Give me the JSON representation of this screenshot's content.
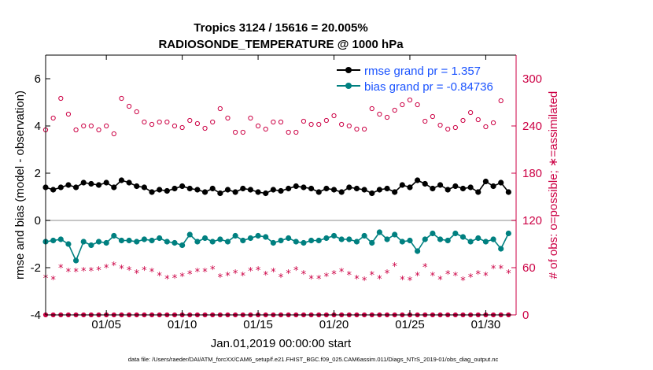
{
  "chart_data": {
    "type": "line",
    "title_line1": "Tropics 3124 / 15616 = 20.005%",
    "title_line2": "RADIOSONDE_TEMPERATURE @ 1000 hPa",
    "xlabel": "Jan.01,2019 00:00:00 start",
    "ylabel_left": "rmse and bias (model - observation)",
    "ylabel_right": "# of obs: o=possible; ∗=assimilated",
    "footnote": "data file: /Users/raeder/DAI/ATM_forcXX/CAM6_setup/f.e21.FHIST_BGC.f09_025.CAM6assim.011/Diags_NTrS_2019-01/obs_diag_output.nc",
    "legend": [
      "rmse grand pr = 1.357",
      "bias grand pr = -0.84736"
    ],
    "x_range": [
      1.0,
      32.0
    ],
    "ylim_left": [
      -4,
      7
    ],
    "yticks_left": [
      -4,
      -2,
      0,
      2,
      4,
      6
    ],
    "ylim_right": [
      0,
      330
    ],
    "yticks_right": [
      0,
      60,
      120,
      180,
      240,
      300
    ],
    "xticks": [
      {
        "x": 5,
        "label": "01/05"
      },
      {
        "x": 10,
        "label": "01/10"
      },
      {
        "x": 15,
        "label": "01/15"
      },
      {
        "x": 20,
        "label": "01/20"
      },
      {
        "x": 25,
        "label": "01/25"
      },
      {
        "x": 30,
        "label": "01/30"
      }
    ],
    "x": [
      1.0,
      1.5,
      2.0,
      2.5,
      3.0,
      3.5,
      4.0,
      4.5,
      5.0,
      5.5,
      6.0,
      6.5,
      7.0,
      7.5,
      8.0,
      8.5,
      9.0,
      9.5,
      10.0,
      10.5,
      11.0,
      11.5,
      12.0,
      12.5,
      13.0,
      13.5,
      14.0,
      14.5,
      15.0,
      15.5,
      16.0,
      16.5,
      17.0,
      17.5,
      18.0,
      18.5,
      19.0,
      19.5,
      20.0,
      20.5,
      21.0,
      21.5,
      22.0,
      22.5,
      23.0,
      23.5,
      24.0,
      24.5,
      25.0,
      25.5,
      26.0,
      26.5,
      27.0,
      27.5,
      28.0,
      28.5,
      29.0,
      29.5,
      30.0,
      30.5,
      31.0,
      31.5
    ],
    "series": [
      {
        "name": "rmse",
        "axis": "left",
        "color": "#000000",
        "values": [
          1.4,
          1.3,
          1.4,
          1.5,
          1.4,
          1.6,
          1.55,
          1.5,
          1.6,
          1.4,
          1.7,
          1.6,
          1.45,
          1.4,
          1.2,
          1.3,
          1.25,
          1.35,
          1.45,
          1.35,
          1.3,
          1.2,
          1.35,
          1.15,
          1.3,
          1.2,
          1.35,
          1.3,
          1.2,
          1.15,
          1.3,
          1.25,
          1.35,
          1.45,
          1.4,
          1.35,
          1.2,
          1.35,
          1.3,
          1.2,
          1.4,
          1.35,
          1.3,
          1.15,
          1.3,
          1.35,
          1.2,
          1.5,
          1.4,
          1.7,
          1.55,
          1.35,
          1.5,
          1.3,
          1.45,
          1.35,
          1.4,
          1.2,
          1.65,
          1.45,
          1.6,
          1.2
        ]
      },
      {
        "name": "bias",
        "axis": "left",
        "color": "#008080",
        "values": [
          -0.9,
          -0.85,
          -0.8,
          -1.0,
          -1.7,
          -0.9,
          -1.05,
          -0.9,
          -0.95,
          -0.65,
          -0.85,
          -0.85,
          -0.9,
          -0.8,
          -0.85,
          -0.75,
          -0.9,
          -0.95,
          -1.05,
          -0.6,
          -0.9,
          -0.75,
          -0.9,
          -0.8,
          -0.9,
          -0.65,
          -0.85,
          -0.75,
          -0.65,
          -0.7,
          -0.95,
          -0.85,
          -0.75,
          -0.9,
          -0.95,
          -0.85,
          -0.85,
          -0.75,
          -0.65,
          -0.8,
          -0.8,
          -0.9,
          -0.65,
          -0.95,
          -0.5,
          -0.8,
          -0.6,
          -0.9,
          -0.85,
          -1.3,
          -0.8,
          -0.55,
          -0.8,
          -0.85,
          -0.55,
          -0.7,
          -0.9,
          -0.75,
          -0.9,
          -0.8,
          -1.2,
          -0.55
        ]
      },
      {
        "name": "obs possible",
        "axis": "right",
        "color": "#cc0044",
        "values": [
          235,
          250,
          275,
          255,
          235,
          240,
          240,
          235,
          240,
          230,
          275,
          265,
          258,
          245,
          242,
          245,
          245,
          240,
          238,
          247,
          243,
          237,
          245,
          262,
          250,
          232,
          232,
          250,
          240,
          236,
          245,
          245,
          232,
          232,
          246,
          242,
          242,
          247,
          253,
          242,
          240,
          236,
          236,
          262,
          255,
          251,
          260,
          267,
          273,
          267,
          246,
          252,
          241,
          236,
          238,
          247,
          257,
          248,
          239,
          244,
          272,
          290
        ]
      },
      {
        "name": "obs assimilated",
        "axis": "right",
        "color": "#cc0044",
        "values": [
          47,
          45,
          60,
          55,
          55,
          56,
          56,
          57,
          60,
          63,
          59,
          57,
          53,
          57,
          55,
          50,
          46,
          47,
          49,
          52,
          55,
          55,
          58,
          48,
          50,
          53,
          50,
          56,
          57,
          51,
          55,
          48,
          53,
          57,
          52,
          46,
          46,
          49,
          52,
          55,
          51,
          46,
          44,
          51,
          46,
          53,
          62,
          45,
          44,
          50,
          61,
          50,
          45,
          52,
          50,
          44,
          48,
          52,
          50,
          59,
          59,
          53
        ]
      },
      {
        "name": "obs zero baseline",
        "axis": "right",
        "color": "#cc0044",
        "values": [
          0,
          0,
          0,
          0,
          0,
          0,
          0,
          0,
          0,
          0,
          0,
          0,
          0,
          0,
          0,
          0,
          0,
          0,
          0,
          0,
          0,
          0,
          0,
          0,
          0,
          0,
          0,
          0,
          0,
          0,
          0,
          0,
          0,
          0,
          0,
          0,
          0,
          0,
          0,
          0,
          0,
          0,
          0,
          0,
          0,
          0,
          0,
          0,
          0,
          0,
          0,
          0,
          0,
          0,
          0,
          0,
          0,
          0,
          0,
          0,
          0,
          0
        ]
      }
    ]
  }
}
